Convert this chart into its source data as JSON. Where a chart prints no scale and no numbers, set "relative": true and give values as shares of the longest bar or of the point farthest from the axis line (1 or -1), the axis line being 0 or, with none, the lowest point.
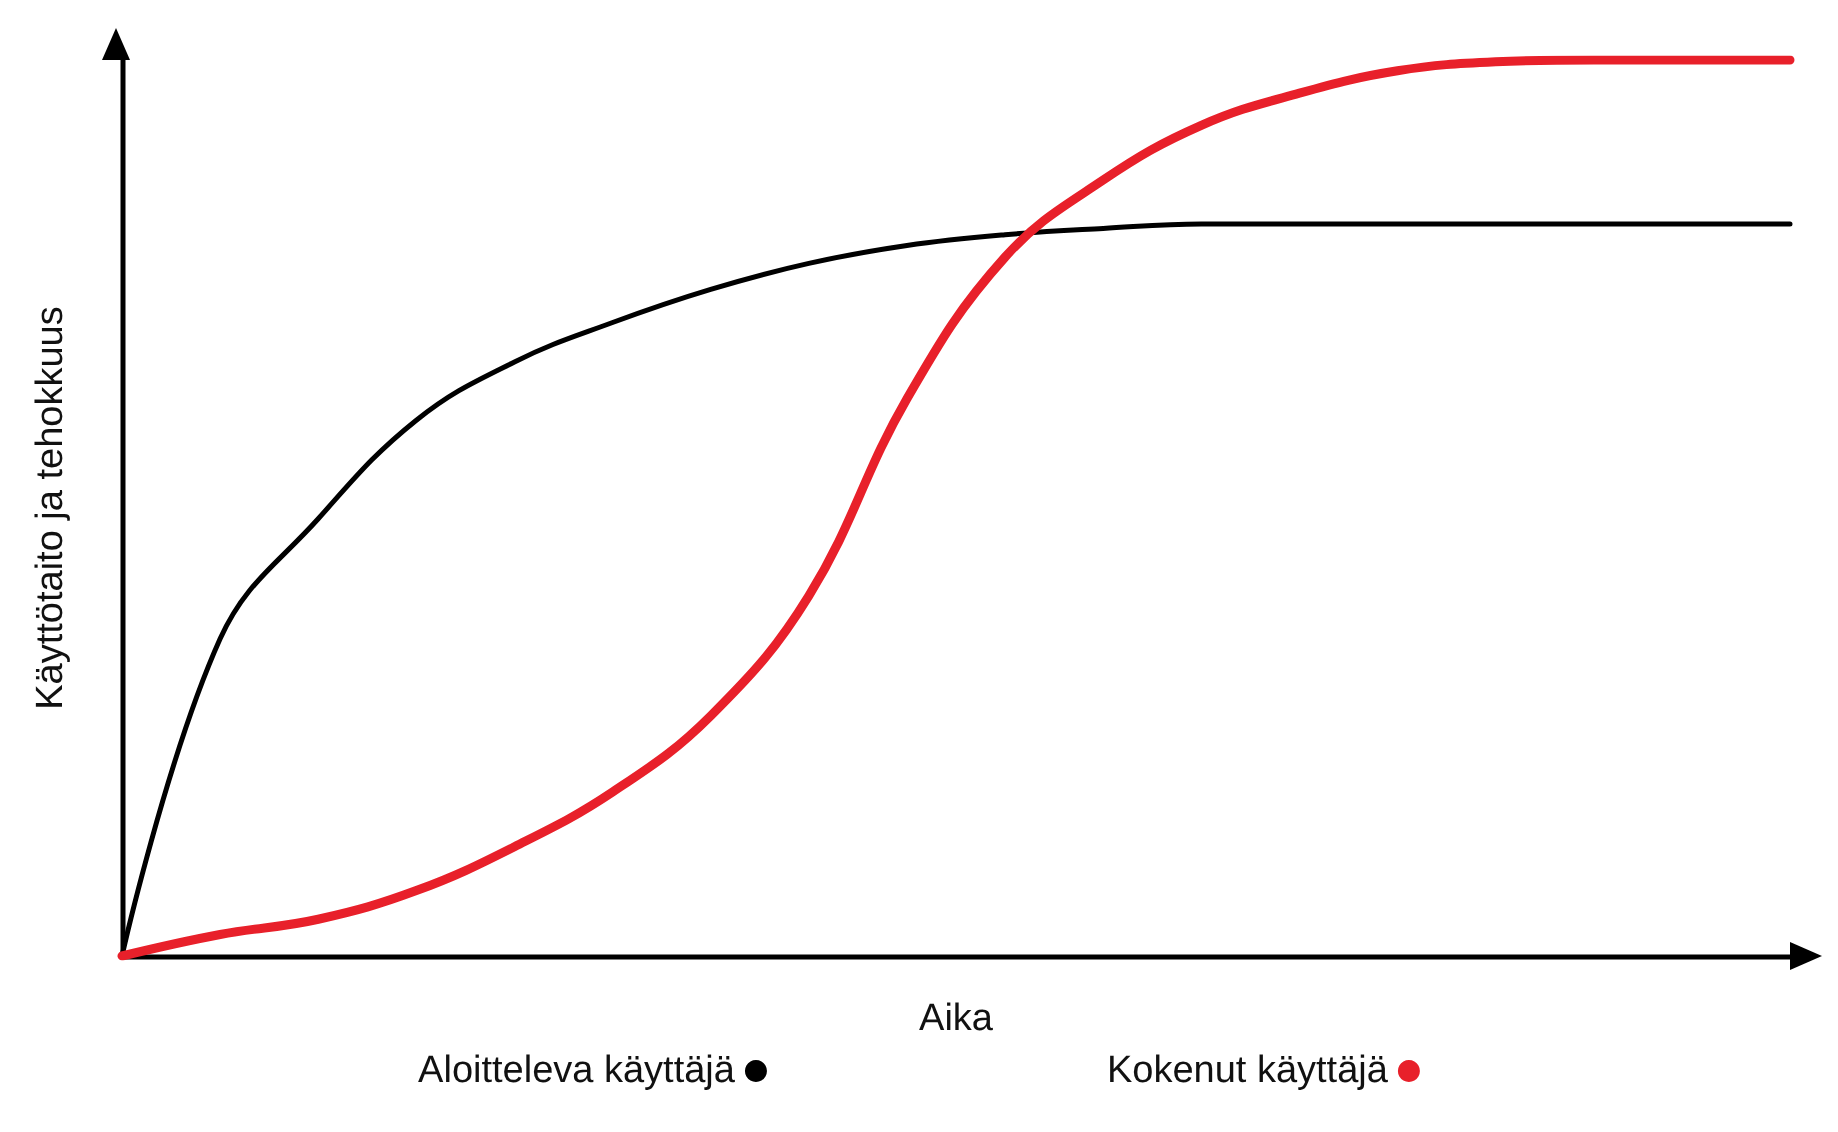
{
  "chart_data": {
    "type": "line",
    "xlabel": "Aika",
    "ylabel": "Käyttötaito ja tehokkuus",
    "relative": true,
    "legend": "bottom",
    "marker": "none",
    "line_style": "solid",
    "categories": [
      null,
      null,
      null,
      null,
      null,
      null,
      null,
      null,
      null,
      null,
      null,
      null,
      null,
      null,
      null,
      null,
      null,
      null
    ],
    "series": [
      {
        "name": "Aloitteleva käyttäjä",
        "color": "#000000",
        "values": [
          0,
          0.354,
          0.488,
          0.598,
          0.663,
          0.707,
          0.744,
          0.773,
          0.793,
          0.805,
          0.812,
          0.817,
          0.817,
          0.817,
          0.817,
          0.817,
          0.817,
          0.817
        ]
      },
      {
        "name": "Kokenut käyttäjä",
        "color": "#e8202a",
        "values": [
          0,
          0.024,
          0.041,
          0.073,
          0.122,
          0.183,
          0.268,
          0.402,
          0.622,
          0.78,
          0.866,
          0.927,
          0.963,
          0.988,
          0.998,
          1,
          1,
          1
        ]
      }
    ]
  }
}
